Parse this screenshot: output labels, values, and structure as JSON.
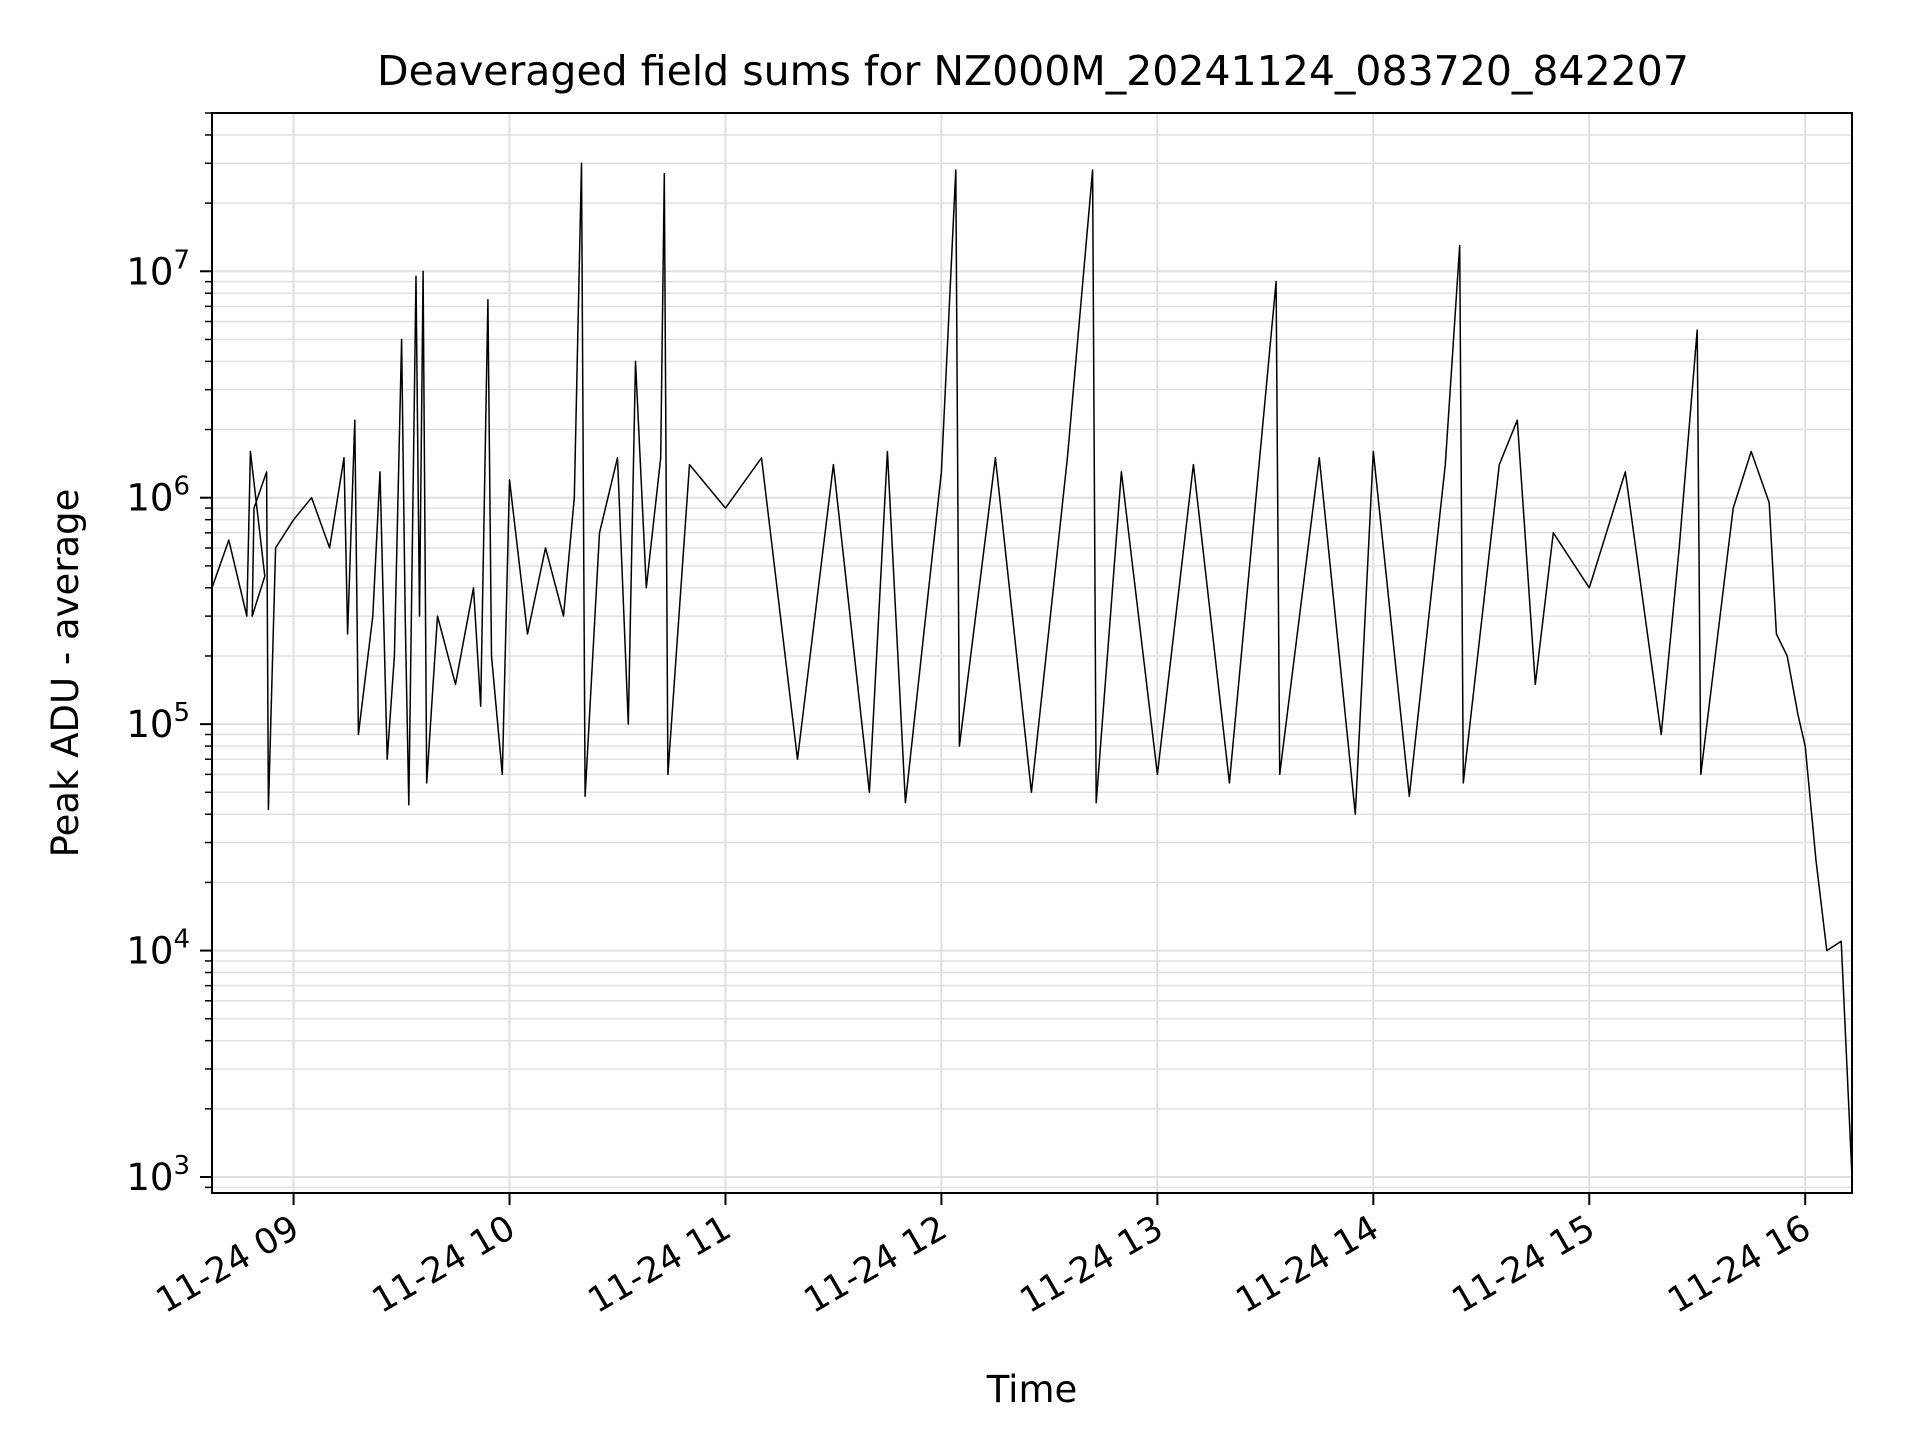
{
  "chart_data": {
    "type": "line",
    "title": "Deaveraged field sums for NZ000M_20241124_083720_842207",
    "xlabel": "Time",
    "ylabel": "Peak ADU - average",
    "x_range": [
      "2024-11-24 08:37:20",
      "2024-11-24 16:13:00"
    ],
    "y_scale": "log",
    "ylim": [
      850,
      50000000
    ],
    "grid": true,
    "colors": {
      "line": "#000000",
      "grid": "#e0e0e0",
      "frame": "#000000"
    },
    "x_ticks": [
      {
        "value": "2024-11-24 09:00",
        "label": "11-24 09"
      },
      {
        "value": "2024-11-24 10:00",
        "label": "11-24 10"
      },
      {
        "value": "2024-11-24 11:00",
        "label": "11-24 11"
      },
      {
        "value": "2024-11-24 12:00",
        "label": "11-24 12"
      },
      {
        "value": "2024-11-24 13:00",
        "label": "11-24 13"
      },
      {
        "value": "2024-11-24 14:00",
        "label": "11-24 14"
      },
      {
        "value": "2024-11-24 15:00",
        "label": "11-24 15"
      },
      {
        "value": "2024-11-24 16:00",
        "label": "11-24 16"
      }
    ],
    "y_ticks": [
      {
        "value": 1000,
        "base": "10",
        "exp": "3"
      },
      {
        "value": 10000,
        "base": "10",
        "exp": "4"
      },
      {
        "value": 100000,
        "base": "10",
        "exp": "5"
      },
      {
        "value": 1000000,
        "base": "10",
        "exp": "6"
      },
      {
        "value": 10000000,
        "base": "10",
        "exp": "7"
      }
    ],
    "series": [
      {
        "points": [
          [
            "2024-11-24 08:37:20",
            400000
          ],
          [
            "2024-11-24 08:42",
            650000
          ],
          [
            "2024-11-24 08:47",
            300000
          ],
          [
            "2024-11-24 08:48",
            1600000
          ],
          [
            "2024-11-24 08:52",
            450000
          ],
          [
            "2024-11-24 08:48:30",
            300000
          ],
          [
            "2024-11-24 08:49",
            900000
          ],
          [
            "2024-11-24 08:52:30",
            1300000
          ],
          [
            "2024-11-24 08:53",
            42000
          ],
          [
            "2024-11-24 08:55",
            600000
          ],
          [
            "2024-11-24 09:00",
            800000
          ],
          [
            "2024-11-24 09:05",
            1000000
          ],
          [
            "2024-11-24 09:10",
            600000
          ],
          [
            "2024-11-24 09:14",
            1500000
          ],
          [
            "2024-11-24 09:15",
            250000
          ],
          [
            "2024-11-24 09:17",
            2200000
          ],
          [
            "2024-11-24 09:18",
            90000
          ],
          [
            "2024-11-24 09:22",
            300000
          ],
          [
            "2024-11-24 09:24",
            1300000
          ],
          [
            "2024-11-24 09:26",
            70000
          ],
          [
            "2024-11-24 09:28",
            200000
          ],
          [
            "2024-11-24 09:30",
            5000000
          ],
          [
            "2024-11-24 09:31",
            300000
          ],
          [
            "2024-11-24 09:32",
            44000
          ],
          [
            "2024-11-24 09:34",
            9500000
          ],
          [
            "2024-11-24 09:35",
            300000
          ],
          [
            "2024-11-24 09:36",
            10000000
          ],
          [
            "2024-11-24 09:37",
            55000
          ],
          [
            "2024-11-24 09:40",
            300000
          ],
          [
            "2024-11-24 09:45",
            150000
          ],
          [
            "2024-11-24 09:50",
            400000
          ],
          [
            "2024-11-24 09:52",
            120000
          ],
          [
            "2024-11-24 09:54",
            7500000
          ],
          [
            "2024-11-24 09:55",
            200000
          ],
          [
            "2024-11-24 09:58",
            60000
          ],
          [
            "2024-11-24 10:00",
            1200000
          ],
          [
            "2024-11-24 10:05",
            250000
          ],
          [
            "2024-11-24 10:10",
            600000
          ],
          [
            "2024-11-24 10:15",
            300000
          ],
          [
            "2024-11-24 10:18",
            1000000
          ],
          [
            "2024-11-24 10:20",
            30000000
          ],
          [
            "2024-11-24 10:21",
            48000
          ],
          [
            "2024-11-24 10:25",
            700000
          ],
          [
            "2024-11-24 10:30",
            1500000
          ],
          [
            "2024-11-24 10:33",
            100000
          ],
          [
            "2024-11-24 10:35",
            4000000
          ],
          [
            "2024-11-24 10:38",
            400000
          ],
          [
            "2024-11-24 10:42",
            1500000
          ],
          [
            "2024-11-24 10:43",
            27000000
          ],
          [
            "2024-11-24 10:44",
            60000
          ],
          [
            "2024-11-24 10:50",
            1400000
          ],
          [
            "2024-11-24 11:00",
            900000
          ],
          [
            "2024-11-24 11:10",
            1500000
          ],
          [
            "2024-11-24 11:20",
            70000
          ],
          [
            "2024-11-24 11:30",
            1400000
          ],
          [
            "2024-11-24 11:40",
            50000
          ],
          [
            "2024-11-24 11:45",
            1600000
          ],
          [
            "2024-11-24 11:50",
            45000
          ],
          [
            "2024-11-24 12:00",
            1300000
          ],
          [
            "2024-11-24 12:04",
            28000000
          ],
          [
            "2024-11-24 12:05",
            80000
          ],
          [
            "2024-11-24 12:15",
            1500000
          ],
          [
            "2024-11-24 12:25",
            50000
          ],
          [
            "2024-11-24 12:35",
            1500000
          ],
          [
            "2024-11-24 12:42",
            28000000
          ],
          [
            "2024-11-24 12:43",
            45000
          ],
          [
            "2024-11-24 12:50",
            1300000
          ],
          [
            "2024-11-24 13:00",
            60000
          ],
          [
            "2024-11-24 13:10",
            1400000
          ],
          [
            "2024-11-24 13:20",
            55000
          ],
          [
            "2024-11-24 13:33",
            9000000
          ],
          [
            "2024-11-24 13:34",
            60000
          ],
          [
            "2024-11-24 13:45",
            1500000
          ],
          [
            "2024-11-24 13:55",
            40000
          ],
          [
            "2024-11-24 14:00",
            1600000
          ],
          [
            "2024-11-24 14:10",
            48000
          ],
          [
            "2024-11-24 14:20",
            1400000
          ],
          [
            "2024-11-24 14:24",
            13000000
          ],
          [
            "2024-11-24 14:25",
            55000
          ],
          [
            "2024-11-24 14:35",
            1400000
          ],
          [
            "2024-11-24 14:40",
            2200000
          ],
          [
            "2024-11-24 14:45",
            150000
          ],
          [
            "2024-11-24 14:50",
            700000
          ],
          [
            "2024-11-24 15:00",
            400000
          ],
          [
            "2024-11-24 15:10",
            1300000
          ],
          [
            "2024-11-24 15:20",
            90000
          ],
          [
            "2024-11-24 15:25",
            600000
          ],
          [
            "2024-11-24 15:30",
            5500000
          ],
          [
            "2024-11-24 15:31",
            60000
          ],
          [
            "2024-11-24 15:40",
            900000
          ],
          [
            "2024-11-24 15:45",
            1600000
          ],
          [
            "2024-11-24 15:50",
            950000
          ],
          [
            "2024-11-24 15:52",
            250000
          ],
          [
            "2024-11-24 15:55",
            200000
          ],
          [
            "2024-11-24 15:58",
            110000
          ],
          [
            "2024-11-24 16:00",
            80000
          ],
          [
            "2024-11-24 16:03",
            25000
          ],
          [
            "2024-11-24 16:06",
            10000
          ],
          [
            "2024-11-24 16:10",
            11000
          ],
          [
            "2024-11-24 16:13",
            1000
          ]
        ]
      }
    ]
  }
}
